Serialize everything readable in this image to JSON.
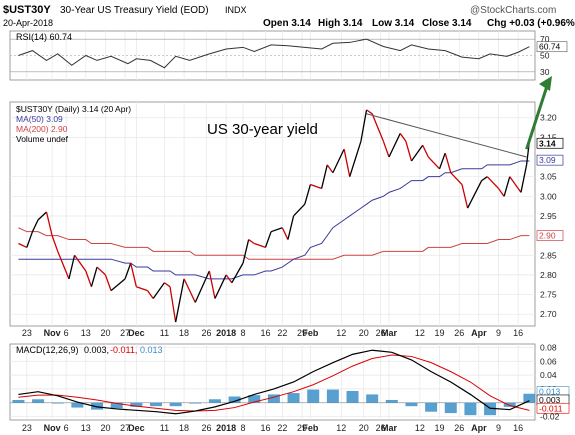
{
  "header": {
    "symbol": "$UST30Y",
    "name": "30-Year US Treasury Yield (EOD)",
    "exchange": "INDX",
    "date": "20-Apr-2018",
    "watermark": "@StockCharts.com",
    "open": "Open 3.14",
    "high": "High 3.14",
    "low": "Low 3.14",
    "close": "Close 3.14",
    "chg": "Chg +0.03 (+0.96%)"
  },
  "rsi_panel": {
    "legend": "RSI(14) 60.74",
    "value_tag": "60.74",
    "ticks": [
      "70",
      "50",
      "30"
    ],
    "overbought": 70,
    "oversold": 30
  },
  "price_panel": {
    "legend_price": "$UST30Y (Daily) 3.14 (20 Apr)",
    "legend_ma50": "MA(50) 3.09",
    "legend_ma200": "MA(200) 2.90",
    "legend_volume": "Volume undef",
    "annotation": "US 30-year yield",
    "ticks": [
      "3.20",
      "3.15",
      "3.05",
      "3.00",
      "2.95",
      "2.85",
      "2.80",
      "2.75",
      "2.70"
    ],
    "tag_close": "3.14",
    "tag_ma50": "3.09",
    "tag_ma200": "2.90"
  },
  "macd_panel": {
    "legend_label": "MACD(12,26,9)",
    "legend_macd": "0.003,",
    "legend_signal": "-0.011,",
    "legend_hist": "0.013",
    "ticks": [
      "0.08",
      "0.06",
      "0.04",
      "0.02",
      "-0.02"
    ],
    "tag_hist": "0.013",
    "tag_macd": "0.003",
    "tag_signal": "-0.011"
  },
  "x_axis_labels": [
    "23",
    "Nov",
    "6",
    "13",
    "20",
    "27",
    "Dec",
    "11",
    "18",
    "26",
    "2018",
    "8",
    "16",
    "22",
    "29",
    "Feb",
    "12",
    "20",
    "26",
    "Mar",
    "12",
    "19",
    "26",
    "Apr",
    "9",
    "16"
  ],
  "x_axis_bold": [
    "Nov",
    "Dec",
    "2018",
    "Feb",
    "Mar",
    "Apr"
  ],
  "colors": {
    "price": "#000000",
    "price_down": "#cc0000",
    "ma50": "#3a3a9a",
    "ma200": "#cc4444",
    "macd": "#000000",
    "signal": "#dd0000",
    "histogram": "#3a8fc7",
    "trend_arrow": "#2e7d32",
    "trendline": "#555555",
    "grid": "#e6e6e6"
  },
  "chart_data": [
    {
      "type": "line",
      "title": "RSI(14)",
      "ylim": [
        20,
        80
      ],
      "x": [
        "2017-10-20",
        "2017-10-25",
        "2017-10-30",
        "2017-11-03",
        "2017-11-08",
        "2017-11-13",
        "2017-11-17",
        "2017-11-22",
        "2017-11-28",
        "2017-12-01",
        "2017-12-06",
        "2017-12-11",
        "2017-12-15",
        "2017-12-20",
        "2017-12-27",
        "2018-01-02",
        "2018-01-08",
        "2018-01-12",
        "2018-01-18",
        "2018-01-24",
        "2018-01-30",
        "2018-02-05",
        "2018-02-09",
        "2018-02-15",
        "2018-02-21",
        "2018-02-27",
        "2018-03-05",
        "2018-03-09",
        "2018-03-15",
        "2018-03-21",
        "2018-03-27",
        "2018-04-02",
        "2018-04-06",
        "2018-04-12",
        "2018-04-16",
        "2018-04-20"
      ],
      "series": [
        {
          "name": "RSI(14)",
          "values": [
            50,
            56,
            44,
            52,
            38,
            50,
            44,
            49,
            40,
            46,
            44,
            35,
            49,
            44,
            52,
            58,
            60,
            55,
            63,
            62,
            60,
            58,
            65,
            66,
            70,
            61,
            56,
            63,
            58,
            56,
            48,
            46,
            52,
            49,
            54,
            60.74
          ]
        }
      ]
    },
    {
      "type": "line",
      "title": "$UST30Y (Daily)",
      "ylim": [
        2.67,
        3.24
      ],
      "x": [
        "2017-10-20",
        "2017-10-23",
        "2017-10-25",
        "2017-10-27",
        "2017-10-30",
        "2017-11-01",
        "2017-11-03",
        "2017-11-07",
        "2017-11-09",
        "2017-11-13",
        "2017-11-15",
        "2017-11-17",
        "2017-11-20",
        "2017-11-22",
        "2017-11-27",
        "2017-11-29",
        "2017-12-01",
        "2017-12-05",
        "2017-12-07",
        "2017-12-11",
        "2017-12-13",
        "2017-12-15",
        "2017-12-18",
        "2017-12-20",
        "2017-12-22",
        "2017-12-27",
        "2017-12-29",
        "2018-01-02",
        "2018-01-04",
        "2018-01-08",
        "2018-01-10",
        "2018-01-12",
        "2018-01-16",
        "2018-01-18",
        "2018-01-22",
        "2018-01-24",
        "2018-01-26",
        "2018-01-30",
        "2018-02-01",
        "2018-02-05",
        "2018-02-07",
        "2018-02-09",
        "2018-02-13",
        "2018-02-15",
        "2018-02-19",
        "2018-02-21",
        "2018-02-23",
        "2018-02-27",
        "2018-03-01",
        "2018-03-05",
        "2018-03-07",
        "2018-03-09",
        "2018-03-13",
        "2018-03-15",
        "2018-03-19",
        "2018-03-21",
        "2018-03-23",
        "2018-03-27",
        "2018-03-29",
        "2018-04-03",
        "2018-04-05",
        "2018-04-09",
        "2018-04-11",
        "2018-04-13",
        "2018-04-17",
        "2018-04-19",
        "2018-04-20"
      ],
      "series": [
        {
          "name": "$UST30Y",
          "values": [
            2.88,
            2.87,
            2.91,
            2.94,
            2.96,
            2.9,
            2.86,
            2.79,
            2.85,
            2.81,
            2.77,
            2.82,
            2.8,
            2.76,
            2.79,
            2.83,
            2.77,
            2.76,
            2.74,
            2.78,
            2.77,
            2.68,
            2.79,
            2.76,
            2.73,
            2.81,
            2.74,
            2.8,
            2.78,
            2.83,
            2.89,
            2.88,
            2.87,
            2.91,
            2.92,
            2.89,
            2.95,
            2.98,
            3.03,
            3.02,
            3.08,
            3.06,
            3.12,
            3.05,
            3.14,
            3.22,
            3.21,
            3.14,
            3.1,
            3.16,
            3.14,
            3.09,
            3.13,
            3.1,
            3.07,
            3.11,
            3.06,
            3.03,
            2.97,
            3.04,
            3.05,
            3.02,
            3.0,
            3.05,
            3.01,
            3.08,
            3.14
          ]
        },
        {
          "name": "MA(50)",
          "values": [
            2.84,
            2.84,
            2.84,
            2.84,
            2.84,
            2.84,
            2.84,
            2.84,
            2.84,
            2.84,
            2.84,
            2.84,
            2.84,
            2.84,
            2.83,
            2.83,
            2.82,
            2.82,
            2.81,
            2.81,
            2.81,
            2.8,
            2.8,
            2.8,
            2.8,
            2.79,
            2.79,
            2.79,
            2.79,
            2.8,
            2.8,
            2.8,
            2.81,
            2.81,
            2.82,
            2.83,
            2.84,
            2.85,
            2.87,
            2.88,
            2.9,
            2.92,
            2.94,
            2.95,
            2.97,
            2.98,
            2.99,
            3.0,
            3.01,
            3.02,
            3.03,
            3.04,
            3.04,
            3.05,
            3.05,
            3.06,
            3.06,
            3.07,
            3.07,
            3.07,
            3.08,
            3.08,
            3.08,
            3.08,
            3.09,
            3.09,
            3.09
          ]
        },
        {
          "name": "MA(200)",
          "values": [
            2.92,
            2.91,
            2.91,
            2.91,
            2.9,
            2.9,
            2.9,
            2.89,
            2.89,
            2.89,
            2.88,
            2.88,
            2.88,
            2.88,
            2.87,
            2.87,
            2.87,
            2.87,
            2.86,
            2.86,
            2.86,
            2.86,
            2.86,
            2.86,
            2.85,
            2.85,
            2.85,
            2.85,
            2.85,
            2.85,
            2.84,
            2.84,
            2.84,
            2.84,
            2.84,
            2.84,
            2.84,
            2.84,
            2.84,
            2.84,
            2.84,
            2.84,
            2.85,
            2.85,
            2.85,
            2.85,
            2.85,
            2.86,
            2.86,
            2.86,
            2.86,
            2.86,
            2.86,
            2.87,
            2.87,
            2.87,
            2.87,
            2.88,
            2.88,
            2.88,
            2.88,
            2.89,
            2.89,
            2.89,
            2.9,
            2.9,
            2.9
          ]
        }
      ],
      "trendline": {
        "x": [
          "2018-02-21",
          "2018-04-19"
        ],
        "y": [
          3.21,
          3.1
        ]
      }
    },
    {
      "type": "line",
      "title": "MACD(12,26,9)",
      "ylim": [
        -0.025,
        0.085
      ],
      "x": [
        "2017-10-20",
        "2017-10-27",
        "2017-11-03",
        "2017-11-10",
        "2017-11-17",
        "2017-11-24",
        "2017-12-01",
        "2017-12-08",
        "2017-12-15",
        "2017-12-22",
        "2017-12-29",
        "2018-01-05",
        "2018-01-12",
        "2018-01-19",
        "2018-01-26",
        "2018-02-02",
        "2018-02-09",
        "2018-02-16",
        "2018-02-23",
        "2018-03-02",
        "2018-03-09",
        "2018-03-16",
        "2018-03-23",
        "2018-03-30",
        "2018-04-06",
        "2018-04-13",
        "2018-04-20"
      ],
      "series": [
        {
          "name": "MACD",
          "values": [
            0.012,
            0.016,
            0.01,
            0.001,
            -0.006,
            -0.009,
            -0.011,
            -0.013,
            -0.016,
            -0.012,
            -0.006,
            0.002,
            0.012,
            0.02,
            0.03,
            0.045,
            0.058,
            0.07,
            0.076,
            0.073,
            0.062,
            0.045,
            0.03,
            0.012,
            -0.008,
            -0.01,
            0.003
          ]
        },
        {
          "name": "Signal",
          "values": [
            0.008,
            0.011,
            0.011,
            0.008,
            0.004,
            -0.001,
            -0.005,
            -0.008,
            -0.011,
            -0.012,
            -0.011,
            -0.007,
            0.001,
            0.008,
            0.016,
            0.026,
            0.039,
            0.053,
            0.064,
            0.069,
            0.067,
            0.058,
            0.045,
            0.03,
            0.01,
            -0.004,
            -0.011
          ]
        },
        {
          "name": "Histogram",
          "values": [
            0.004,
            0.005,
            -0.001,
            -0.007,
            -0.01,
            -0.008,
            -0.006,
            -0.005,
            -0.005,
            0.0,
            0.005,
            0.009,
            0.011,
            0.012,
            0.014,
            0.019,
            0.019,
            0.017,
            0.012,
            0.004,
            -0.005,
            -0.013,
            -0.015,
            -0.018,
            -0.018,
            -0.006,
            0.013
          ]
        }
      ]
    }
  ]
}
